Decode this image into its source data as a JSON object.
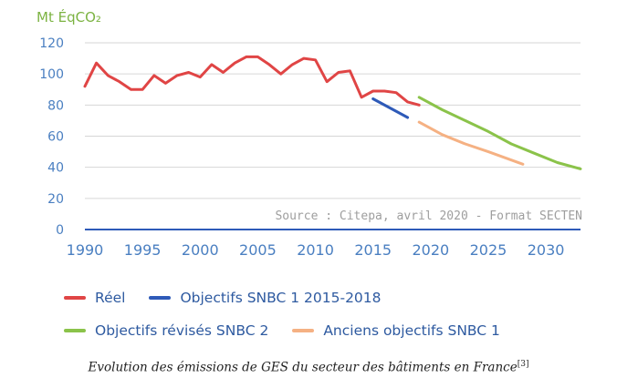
{
  "chart_data": {
    "type": "line",
    "unit_label": "Mt ÉqCO₂",
    "source": "Source : Citepa, avril 2020 - Format SECTEN",
    "xlim": [
      1990,
      2033
    ],
    "ylim": [
      0,
      120
    ],
    "y_ticks": [
      0,
      20,
      40,
      60,
      80,
      100,
      120
    ],
    "x_ticks": [
      1990,
      1995,
      2000,
      2005,
      2010,
      2015,
      2020,
      2025,
      2030
    ],
    "grid": true,
    "legend_position": "bottom",
    "series": [
      {
        "name": "Réel",
        "color": "#e04545",
        "x": [
          1990,
          1991,
          1992,
          1993,
          1994,
          1995,
          1996,
          1997,
          1998,
          1999,
          2000,
          2001,
          2002,
          2003,
          2004,
          2005,
          2006,
          2007,
          2008,
          2009,
          2010,
          2011,
          2012,
          2013,
          2014,
          2015,
          2016,
          2017,
          2018,
          2019
        ],
        "y": [
          92,
          107,
          99,
          95,
          90,
          90,
          99,
          94,
          99,
          101,
          98,
          106,
          101,
          107,
          111,
          111,
          106,
          100,
          106,
          110,
          109,
          95,
          101,
          102,
          85,
          89,
          89,
          88,
          82,
          80
        ]
      },
      {
        "name": "Objectifs SNBC 1 2015-2018",
        "color": "#2e5ab8",
        "x": [
          2015,
          2018
        ],
        "y": [
          84,
          72
        ]
      },
      {
        "name": "Objectifs révisés SNBC 2",
        "color": "#8bc34a",
        "x": [
          2019,
          2021,
          2023,
          2025,
          2027,
          2029,
          2031,
          2033
        ],
        "y": [
          85,
          77,
          70,
          63,
          55,
          49,
          43,
          39
        ]
      },
      {
        "name": "Anciens objectifs SNBC 1",
        "color": "#f5b183",
        "x": [
          2019,
          2021,
          2023,
          2025,
          2028
        ],
        "y": [
          69,
          61,
          55,
          50,
          42
        ]
      }
    ]
  },
  "caption": {
    "text": "Evolution des émissions de GES du secteur des bâtiments en France",
    "ref": "[3]"
  }
}
